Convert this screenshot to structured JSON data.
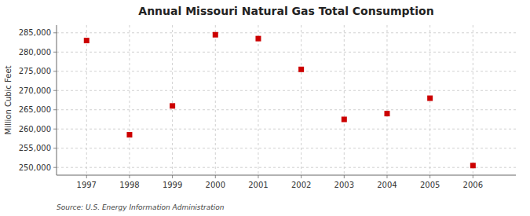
{
  "chart_data": {
    "type": "scatter",
    "title": "Annual Missouri Natural Gas Total Consumption",
    "ylabel": "Million Cubic Feet",
    "source": "Source: U.S. Energy Information Administration",
    "x": [
      1997,
      1998,
      1999,
      2000,
      2001,
      2002,
      2003,
      2004,
      2005,
      2006
    ],
    "values": [
      283000,
      258500,
      266000,
      284500,
      283500,
      275500,
      262500,
      264000,
      268000,
      250500
    ],
    "color": "#cc0000",
    "marker": "square",
    "xlim": [
      1996.3,
      2007.0
    ],
    "xticks": [
      1997,
      1998,
      1999,
      2000,
      2001,
      2002,
      2003,
      2004,
      2005,
      2006
    ],
    "ylim": [
      248000,
      287000
    ],
    "yticks": [
      {
        "value": 250000,
        "label": "250,000"
      },
      {
        "value": 255000,
        "label": "255,000"
      },
      {
        "value": 260000,
        "label": "260,000"
      },
      {
        "value": 265000,
        "label": "265,000"
      },
      {
        "value": 270000,
        "label": "270,000"
      },
      {
        "value": 275000,
        "label": "275,000"
      },
      {
        "value": 280000,
        "label": "280,000"
      },
      {
        "value": 285000,
        "label": "285,000"
      }
    ],
    "grid": true
  }
}
